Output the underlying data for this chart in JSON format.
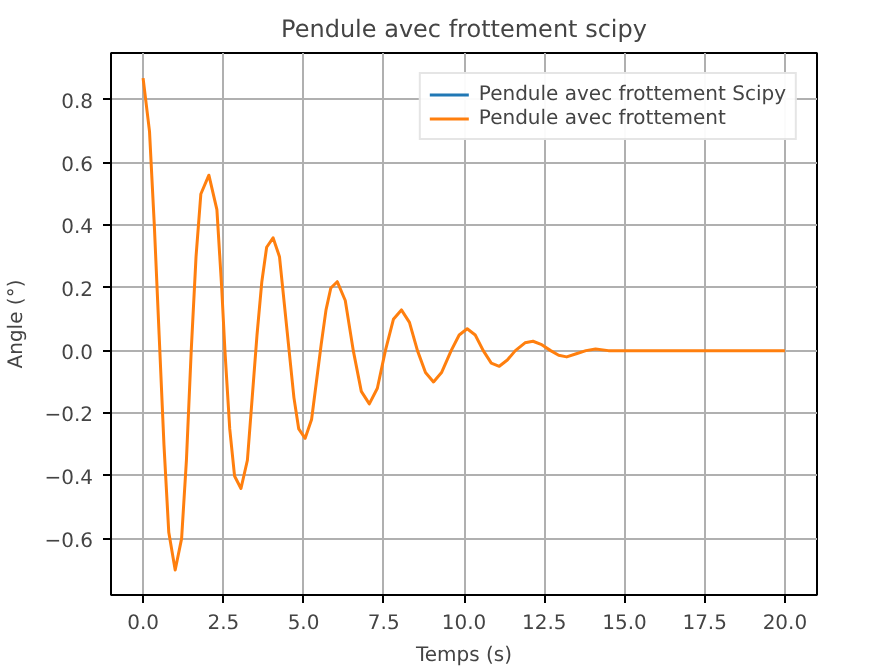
{
  "chart_data": {
    "type": "line",
    "title": "Pendule avec frottement scipy",
    "xlabel": "Temps (s)",
    "ylabel": "Angle (°)",
    "x": [
      0,
      0.2,
      0.35,
      0.5,
      0.65,
      0.8,
      1.0,
      1.2,
      1.35,
      1.5,
      1.65,
      1.8,
      2.05,
      2.3,
      2.45,
      2.55,
      2.7,
      2.85,
      3.05,
      3.25,
      3.4,
      3.55,
      3.7,
      3.85,
      4.05,
      4.25,
      4.4,
      4.55,
      4.7,
      4.85,
      5.05,
      5.25,
      5.4,
      5.55,
      5.7,
      5.85,
      6.05,
      6.3,
      6.55,
      6.8,
      7.05,
      7.3,
      7.55,
      7.8,
      8.05,
      8.3,
      8.55,
      8.8,
      9.05,
      9.3,
      9.6,
      9.85,
      10.1,
      10.35,
      10.6,
      10.85,
      11.1,
      11.35,
      11.6,
      11.9,
      12.15,
      12.4,
      12.7,
      12.95,
      13.2,
      13.5,
      13.8,
      14.1,
      14.5,
      20
    ],
    "series": [
      {
        "name": "Pendule avec frottement Scipy",
        "color": "#1f77b4",
        "values": [
          null,
          null,
          null,
          null,
          null,
          null,
          null,
          null,
          null,
          null,
          null,
          null,
          null,
          null,
          null,
          null,
          null,
          null,
          null,
          null,
          null,
          null,
          null,
          null,
          null,
          null,
          null,
          null,
          null,
          null,
          null,
          null,
          null,
          null,
          null,
          null,
          null,
          null,
          null,
          null,
          null,
          null,
          null,
          null,
          null,
          null,
          null,
          null,
          null,
          null,
          null,
          null,
          null,
          null,
          null,
          null,
          null,
          null,
          null,
          null,
          null,
          null,
          null,
          null,
          null,
          null,
          null,
          null,
          null,
          null
        ]
      },
      {
        "name": "Pendule avec frottement",
        "color": "#ff7f0e",
        "values": [
          0.87,
          0.7,
          0.4,
          0.05,
          -0.3,
          -0.58,
          -0.7,
          -0.6,
          -0.35,
          0.0,
          0.3,
          0.5,
          0.56,
          0.45,
          0.2,
          0.0,
          -0.25,
          -0.4,
          -0.44,
          -0.35,
          -0.15,
          0.05,
          0.22,
          0.33,
          0.36,
          0.3,
          0.15,
          0.0,
          -0.15,
          -0.25,
          -0.28,
          -0.22,
          -0.1,
          0.02,
          0.13,
          0.2,
          0.22,
          0.16,
          0.0,
          -0.13,
          -0.17,
          -0.12,
          0.0,
          0.1,
          0.13,
          0.09,
          0.0,
          -0.07,
          -0.1,
          -0.07,
          0.0,
          0.05,
          0.07,
          0.05,
          0.0,
          -0.04,
          -0.05,
          -0.03,
          0.0,
          0.025,
          0.03,
          0.02,
          0.0,
          -0.015,
          -0.02,
          -0.01,
          0.0,
          0.005,
          0.0,
          0.0
        ]
      }
    ],
    "xlim": [
      -1,
      21
    ],
    "ylim": [
      -0.78,
      0.95
    ],
    "xticks": [
      {
        "value": 0,
        "label": "0.0"
      },
      {
        "value": 2.5,
        "label": "2.5"
      },
      {
        "value": 5,
        "label": "5.0"
      },
      {
        "value": 7.5,
        "label": "7.5"
      },
      {
        "value": 10,
        "label": "10.0"
      },
      {
        "value": 12.5,
        "label": "12.5"
      },
      {
        "value": 15,
        "label": "15.0"
      },
      {
        "value": 17.5,
        "label": "17.5"
      },
      {
        "value": 20,
        "label": "20.0"
      }
    ],
    "yticks": [
      {
        "value": -0.6,
        "label": "−0.6"
      },
      {
        "value": -0.4,
        "label": "−0.4"
      },
      {
        "value": -0.2,
        "label": "−0.2"
      },
      {
        "value": 0,
        "label": "0.0"
      },
      {
        "value": 0.2,
        "label": "0.2"
      },
      {
        "value": 0.4,
        "label": "0.4"
      },
      {
        "value": 0.6,
        "label": "0.6"
      },
      {
        "value": 0.8,
        "label": "0.8"
      }
    ],
    "grid": true,
    "legend": "top right",
    "marker": "none",
    "line_style": "solid"
  }
}
